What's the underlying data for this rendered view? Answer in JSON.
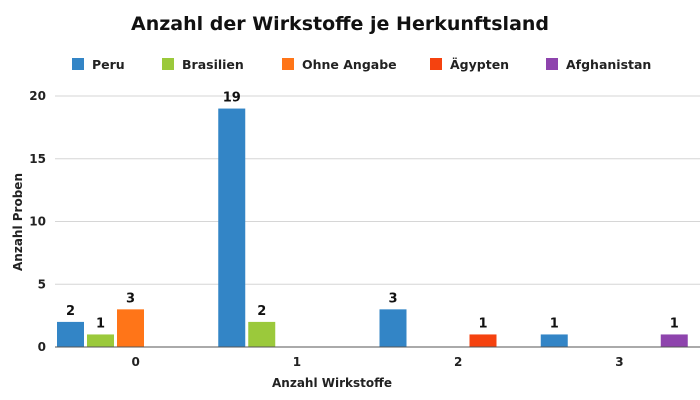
{
  "chart_data": {
    "type": "bar",
    "title": "Anzahl der Wirkstoffe je Herkunftsland",
    "xlabel": "Anzahl Wirkstoffe",
    "ylabel": "Anzahl Proben",
    "categories": [
      "0",
      "1",
      "2",
      "3"
    ],
    "ylim": [
      0,
      20
    ],
    "yticks": [
      "0",
      "5",
      "10",
      "15",
      "20"
    ],
    "grid": true,
    "legend_position": "top",
    "series": [
      {
        "name": "Peru",
        "color": "#3385c6",
        "values": [
          2,
          19,
          3,
          1
        ]
      },
      {
        "name": "Brasilien",
        "color": "#9bc93b",
        "values": [
          1,
          2,
          null,
          null
        ]
      },
      {
        "name": "Ohne Angabe",
        "color": "#ff7518",
        "values": [
          3,
          null,
          null,
          null
        ]
      },
      {
        "name": "Ägypten",
        "color": "#f5420f",
        "values": [
          null,
          null,
          1,
          null
        ]
      },
      {
        "name": "Afghanistan",
        "color": "#8e44ad",
        "values": [
          null,
          null,
          null,
          1
        ]
      }
    ]
  }
}
